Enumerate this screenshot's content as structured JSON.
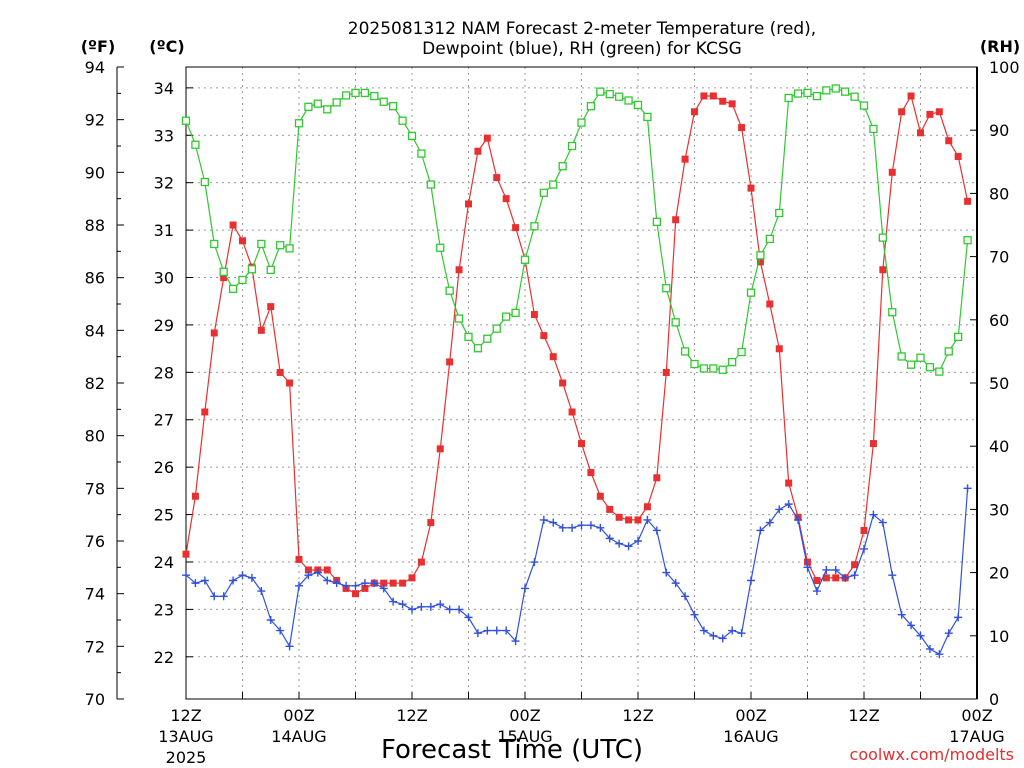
{
  "chart_data": {
    "type": "line",
    "title": "2025081312 NAM Forecast 2-meter Temperature (red),",
    "subtitle": "Dewpoint (blue), RH (green) for KCSG",
    "xlabel": "Forecast Time (UTC)",
    "credit": "coolwx.com/modelts",
    "unit_labels": {
      "fahrenheit": "(ºF)",
      "celsius": "(ºC)",
      "rh": "(RH)"
    },
    "x_ticks": [
      {
        "h": 0,
        "line1": "12Z",
        "line2": "13AUG",
        "line3": "2025"
      },
      {
        "h": 12,
        "line1": "00Z",
        "line2": "14AUG",
        "line3": ""
      },
      {
        "h": 24,
        "line1": "12Z",
        "line2": "",
        "line3": ""
      },
      {
        "h": 36,
        "line1": "00Z",
        "line2": "15AUG",
        "line3": ""
      },
      {
        "h": 48,
        "line1": "12Z",
        "line2": "",
        "line3": ""
      },
      {
        "h": 60,
        "line1": "00Z",
        "line2": "16AUG",
        "line3": ""
      },
      {
        "h": 72,
        "line1": "12Z",
        "line2": "",
        "line3": ""
      },
      {
        "h": 84,
        "line1": "00Z",
        "line2": "17AUG",
        "line3": ""
      }
    ],
    "x_range_hours": [
      0,
      84
    ],
    "y_left_f": {
      "range": [
        70,
        94
      ],
      "ticks": [
        "70",
        "72",
        "74",
        "76",
        "78",
        "80",
        "82",
        "84",
        "86",
        "88",
        "90",
        "92",
        "94"
      ]
    },
    "y_left_c": {
      "range": [
        21.11,
        34.44
      ],
      "ticks": [
        "22",
        "23",
        "24",
        "25",
        "26",
        "27",
        "28",
        "29",
        "30",
        "31",
        "32",
        "33",
        "34"
      ]
    },
    "y_right_rh": {
      "range": [
        0,
        100
      ],
      "ticks": [
        "0",
        "10",
        "20",
        "30",
        "40",
        "50",
        "60",
        "70",
        "80",
        "90",
        "100"
      ]
    },
    "grid": true,
    "series": [
      {
        "name": "Temperature",
        "unit": "F",
        "color": "#e83030",
        "marker": "filled-square",
        "values": [
          75.5,
          77.7,
          80.9,
          83.9,
          86.0,
          88.0,
          87.4,
          86.4,
          84.0,
          84.9,
          82.4,
          82.0,
          75.3,
          74.9,
          74.9,
          74.9,
          74.5,
          74.2,
          74.0,
          74.2,
          74.4,
          74.4,
          74.4,
          74.4,
          74.6,
          75.2,
          76.7,
          79.5,
          82.8,
          86.3,
          88.8,
          90.8,
          91.3,
          89.8,
          89.0,
          87.9,
          86.7,
          84.6,
          83.8,
          83.0,
          82.0,
          80.9,
          79.7,
          78.6,
          77.7,
          77.2,
          76.9,
          76.8,
          76.8,
          77.3,
          78.4,
          82.4,
          88.2,
          90.5,
          92.3,
          92.9,
          92.9,
          92.7,
          92.6,
          91.7,
          89.4,
          86.6,
          85.0,
          83.3,
          78.2,
          76.9,
          75.2,
          74.5,
          74.6,
          74.6,
          74.6,
          75.1,
          76.4,
          79.7,
          86.3,
          90.0,
          92.3,
          92.9,
          91.5,
          92.2,
          92.3,
          91.2,
          90.6,
          88.9
        ]
      },
      {
        "name": "Dewpoint",
        "unit": "F",
        "color": "#3050e0",
        "marker": "plus",
        "values": [
          74.7,
          74.4,
          74.5,
          73.9,
          73.9,
          74.5,
          74.7,
          74.6,
          74.1,
          73.0,
          72.6,
          72.0,
          74.3,
          74.7,
          74.8,
          74.5,
          74.4,
          74.3,
          74.3,
          74.4,
          74.4,
          74.2,
          73.7,
          73.6,
          73.4,
          73.5,
          73.5,
          73.6,
          73.4,
          73.4,
          73.1,
          72.5,
          72.6,
          72.6,
          72.6,
          72.2,
          74.2,
          75.2,
          76.8,
          76.7,
          76.5,
          76.5,
          76.6,
          76.6,
          76.5,
          76.1,
          75.9,
          75.8,
          76.0,
          76.8,
          76.4,
          74.8,
          74.4,
          73.9,
          73.2,
          72.6,
          72.4,
          72.3,
          72.6,
          72.5,
          74.5,
          76.4,
          76.7,
          77.2,
          77.4,
          76.8,
          75.0,
          74.1,
          74.9,
          74.9,
          74.6,
          74.7,
          75.7,
          77.0,
          76.7,
          74.7,
          73.2,
          72.8,
          72.4,
          71.9,
          71.7,
          72.5,
          73.1,
          78.0
        ]
      },
      {
        "name": "RH",
        "unit": "%",
        "color": "#30c830",
        "marker": "open-square",
        "values": [
          91.5,
          87.7,
          81.8,
          72.0,
          67.6,
          64.9,
          66.3,
          68.0,
          72.0,
          67.9,
          71.8,
          71.3,
          91.1,
          93.7,
          94.2,
          93.3,
          94.4,
          95.5,
          95.9,
          95.9,
          95.4,
          94.5,
          93.8,
          91.5,
          89.1,
          86.3,
          81.4,
          71.4,
          64.6,
          60.2,
          57.3,
          55.5,
          57.0,
          58.6,
          60.5,
          61.1,
          69.5,
          74.8,
          80.1,
          81.4,
          84.3,
          87.5,
          91.2,
          93.8,
          96.1,
          95.7,
          95.3,
          94.7,
          94.0,
          92.1,
          75.5,
          65.0,
          59.6,
          55.0,
          53.0,
          52.3,
          52.3,
          52.1,
          53.3,
          54.9,
          64.3,
          70.2,
          72.8,
          76.9,
          95.1,
          95.8,
          95.9,
          95.4,
          96.3,
          96.6,
          96.1,
          95.3,
          93.9,
          90.2,
          73.0,
          61.2,
          54.2,
          52.9,
          54.0,
          52.5,
          51.8,
          55.0,
          57.3,
          72.6
        ]
      }
    ]
  }
}
